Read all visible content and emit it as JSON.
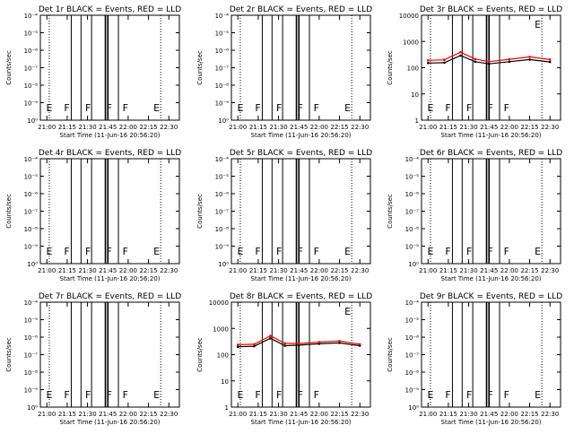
{
  "time_axis": {
    "ticks": [
      "21:00",
      "21:15",
      "21:30",
      "21:45",
      "22:00",
      "22:15",
      "22:30"
    ],
    "xlabel": "Start Time (11-Jun-16 20:56:20)",
    "ylabel": "Counts/sec"
  },
  "flag_letters": [
    "E",
    "F",
    "F",
    "F",
    "F",
    "E"
  ],
  "chart_data": [
    {
      "type": "line",
      "title": "Det 1r BLACK = Events, RED = LLD",
      "ymax_exp": -4,
      "ytick_labels": [
        "10⁻⁴",
        "10⁻⁵",
        "10⁻⁶",
        "10⁻⁷",
        "10⁻⁸",
        "10⁻⁹",
        "10⁰"
      ],
      "series": []
    },
    {
      "type": "line",
      "title": "Det 2r BLACK = Events, RED = LLD",
      "ymax_exp": -4,
      "ytick_labels": [
        "10⁻⁴",
        "10⁻⁵",
        "10⁻⁶",
        "10⁻⁷",
        "10⁻⁸",
        "10⁻⁹",
        "10⁰"
      ],
      "series": []
    },
    {
      "type": "line",
      "title": "Det 3r BLACK = Events, RED = LLD",
      "ymax_exp": 4,
      "ytick_labels": [
        "10000",
        "1000",
        "100",
        "10",
        "1"
      ],
      "x": [
        21.0,
        21.2,
        21.4,
        21.58,
        21.75,
        22.0,
        22.25,
        22.5
      ],
      "series": [
        {
          "name": "Events",
          "color": "#000000",
          "values": [
            150,
            155,
            290,
            170,
            140,
            170,
            205,
            165
          ]
        },
        {
          "name": "LLD",
          "color": "#ff0000",
          "values": [
            190,
            200,
            390,
            215,
            170,
            210,
            260,
            205
          ]
        }
      ]
    },
    {
      "type": "line",
      "title": "Det 4r BLACK = Events, RED = LLD",
      "ymax_exp": -4,
      "ytick_labels": [
        "10⁻⁴",
        "10⁻⁵",
        "10⁻⁶",
        "10⁻⁷",
        "10⁻⁸",
        "10⁻⁹",
        "10⁰"
      ],
      "series": []
    },
    {
      "type": "line",
      "title": "Det 5r BLACK = Events, RED = LLD",
      "ymax_exp": -4,
      "ytick_labels": [
        "10⁻⁴",
        "10⁻⁵",
        "10⁻⁶",
        "10⁻⁷",
        "10⁻⁸",
        "10⁻⁹",
        "10⁰"
      ],
      "series": []
    },
    {
      "type": "line",
      "title": "Det 6r BLACK = Events, RED = LLD",
      "ymax_exp": -4,
      "ytick_labels": [
        "10⁻⁴",
        "10⁻⁵",
        "10⁻⁶",
        "10⁻⁷",
        "10⁻⁸",
        "10⁻⁹",
        "10⁰"
      ],
      "series": []
    },
    {
      "type": "line",
      "title": "Det 7r BLACK = Events, RED = LLD",
      "ymax_exp": -4,
      "ytick_labels": [
        "10⁻⁴",
        "10⁻⁵",
        "10⁻⁶",
        "10⁻⁷",
        "10⁻⁸",
        "10⁻⁹",
        "10⁰"
      ],
      "series": []
    },
    {
      "type": "line",
      "title": "Det 8r BLACK = Events, RED = LLD",
      "ymax_exp": 4,
      "ytick_labels": [
        "10000",
        "1000",
        "100",
        "10",
        "1"
      ],
      "x": [
        21.0,
        21.2,
        21.4,
        21.58,
        21.75,
        22.0,
        22.25,
        22.5
      ],
      "series": [
        {
          "name": "Events",
          "color": "#000000",
          "values": [
            200,
            210,
            420,
            220,
            230,
            260,
            280,
            220
          ]
        },
        {
          "name": "LLD",
          "color": "#ff0000",
          "values": [
            240,
            250,
            520,
            270,
            265,
            300,
            330,
            250
          ]
        }
      ]
    },
    {
      "type": "line",
      "title": "Det 9r BLACK = Events, RED = LLD",
      "ymax_exp": -4,
      "ytick_labels": [
        "10⁻⁴",
        "10⁻⁵",
        "10⁻⁶",
        "10⁻⁷",
        "10⁻⁸",
        "10⁻⁹",
        "10⁰"
      ],
      "series": []
    }
  ]
}
